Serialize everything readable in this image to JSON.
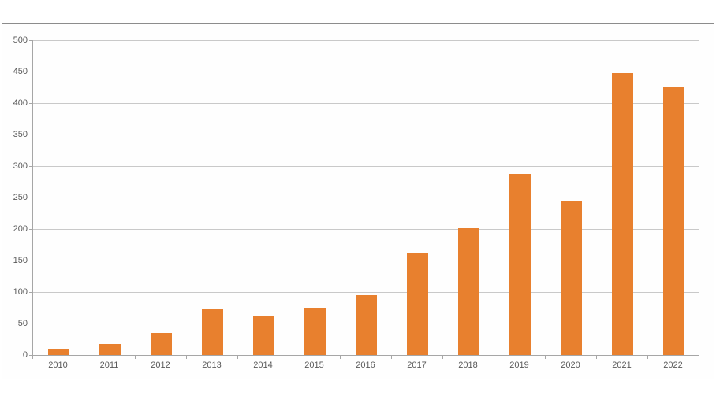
{
  "chart_data": {
    "type": "bar",
    "title": "",
    "xlabel": "",
    "ylabel": "",
    "categories": [
      "2010",
      "2011",
      "2012",
      "2013",
      "2014",
      "2015",
      "2016",
      "2017",
      "2018",
      "2019",
      "2020",
      "2021",
      "2022"
    ],
    "values": [
      10,
      18,
      35,
      72,
      62,
      75,
      95,
      162,
      201,
      287,
      245,
      447,
      426
    ],
    "ylim": [
      0,
      500
    ],
    "ytick_step": 50,
    "yticks": [
      0,
      50,
      100,
      150,
      200,
      250,
      300,
      350,
      400,
      450,
      500
    ],
    "grid": true,
    "legend": false
  },
  "colors": {
    "bar": "#e8802e",
    "gridline": "#c9c9c9",
    "axis": "#a6a6a6",
    "frame_border": "#8c8c8c",
    "tick_label": "#595959",
    "background": "#ffffff"
  }
}
